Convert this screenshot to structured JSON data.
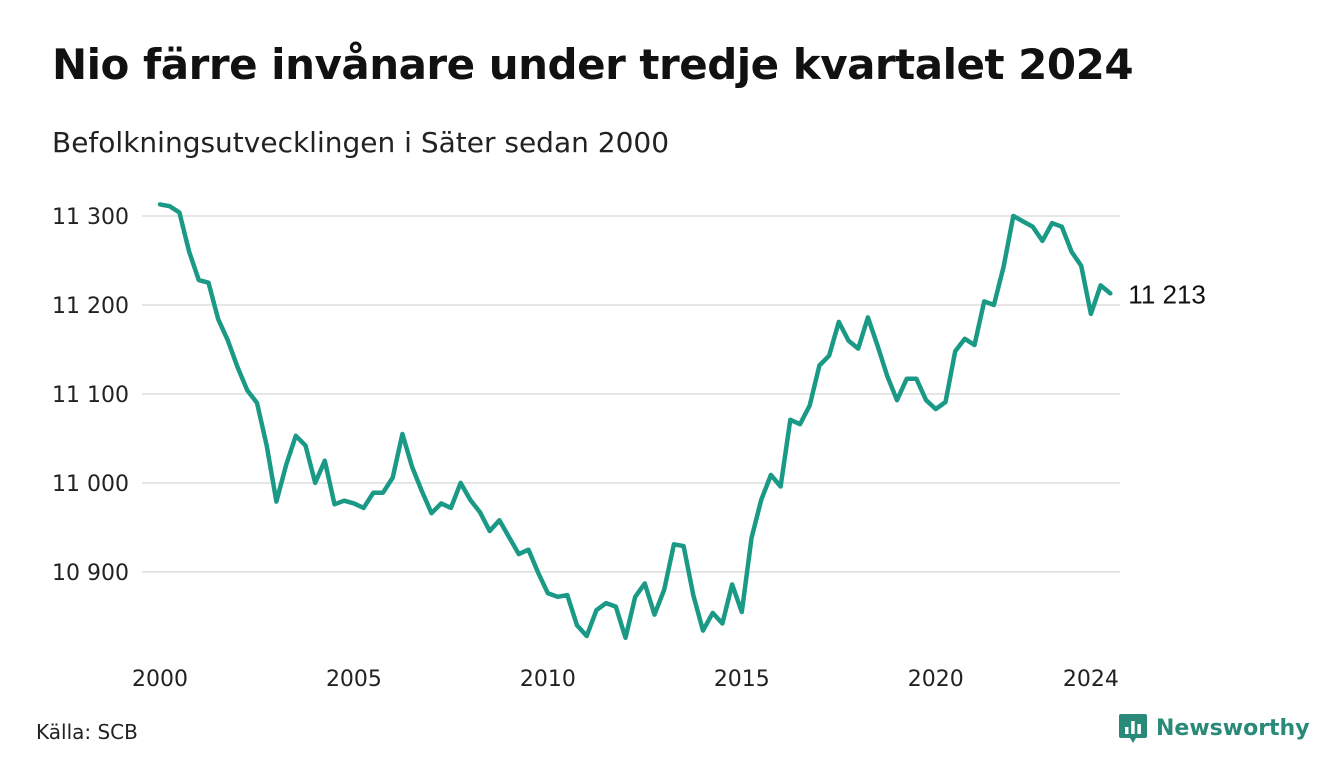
{
  "header": {
    "title": "Nio färre invånare under tredje kvartalet 2024",
    "subtitle": "Befolkningsutvecklingen i Säter sedan 2000"
  },
  "footer": {
    "source": "Källa: SCB",
    "brand": "Newsworthy",
    "brand_icon": "newsworthy-logo-icon"
  },
  "colors": {
    "line": "#1a9a86",
    "grid": "#dddddd",
    "brand": "#2a8a7a"
  },
  "chart_data": {
    "type": "line",
    "title": "Nio färre invånare under tredje kvartalet 2024",
    "subtitle": "Befolkningsutvecklingen i Säter sedan 2000",
    "xlabel": "",
    "ylabel": "",
    "xlim": [
      2000,
      2024.75
    ],
    "ylim": [
      10810,
      11318
    ],
    "grid": true,
    "legend": "none",
    "x_ticks": [
      2000,
      2005,
      2010,
      2015,
      2020,
      2024
    ],
    "x_tick_labels": [
      "2000",
      "2005",
      "2010",
      "2015",
      "2020",
      "2024"
    ],
    "y_ticks": [
      10900,
      11000,
      11100,
      11200,
      11300
    ],
    "y_tick_labels": [
      "10 900",
      "11 000",
      "11 100",
      "11 200",
      "11 300"
    ],
    "end_label": "11 213",
    "series": [
      {
        "x_start": 2000.0,
        "x_step": 0.25,
        "values": [
          11313,
          11311,
          11304,
          11260,
          11228,
          11225,
          11184,
          11160,
          11130,
          11104,
          11090,
          11042,
          10979,
          11020,
          11053,
          11042,
          11000,
          11025,
          10976,
          10980,
          10977,
          10972,
          10989,
          10989,
          11006,
          11055,
          11018,
          10991,
          10966,
          10977,
          10972,
          11000,
          10981,
          10967,
          10946,
          10958,
          10939,
          10920,
          10925,
          10899,
          10876,
          10872,
          10874,
          10840,
          10828,
          10857,
          10865,
          10861,
          10826,
          10872,
          10887,
          10852,
          10880,
          10931,
          10929,
          10874,
          10834,
          10854,
          10842,
          10886,
          10855,
          10938,
          10981,
          11009,
          10996,
          11071,
          11066,
          11087,
          11132,
          11143,
          11181,
          11160,
          11151,
          11186,
          11154,
          11120,
          11093,
          11117,
          11117,
          11093,
          11083,
          11091,
          11148,
          11162,
          11155,
          11204,
          11200,
          11243,
          11300,
          11294,
          11288,
          11272,
          11292,
          11288,
          11260,
          11244,
          11190,
          11222,
          11213
        ]
      }
    ]
  }
}
